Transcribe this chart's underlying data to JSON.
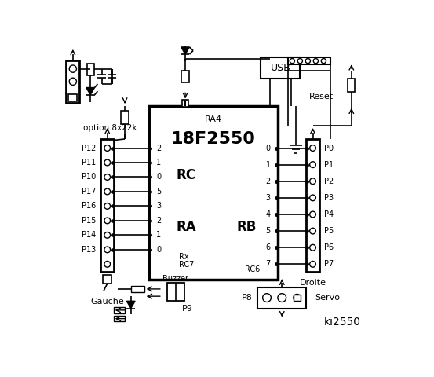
{
  "bg_color": "#ffffff",
  "line_color": "#000000",
  "title": "ki2550",
  "chip_label": "18F2550",
  "rc_label": "RC",
  "ra_label": "RA",
  "rb_label": "RB",
  "ra4_label": "RA4",
  "left_pins": [
    "P12",
    "P11",
    "P10",
    "P17",
    "P16",
    "P15",
    "P14",
    "P13"
  ],
  "right_pins": [
    "P0",
    "P1",
    "P2",
    "P3",
    "P4",
    "P5",
    "P6",
    "P7"
  ],
  "rc_pin_nums": [
    "2",
    "1",
    "0",
    "5",
    "3",
    "2",
    "1",
    "0"
  ],
  "rb_pin_nums": [
    "0",
    "1",
    "2",
    "3",
    "4",
    "5",
    "6",
    "7"
  ],
  "gauche_label": "Gauche",
  "droite_label": "Droite",
  "usb_label": "USB",
  "reset_label": "Reset",
  "servo_label": "Servo",
  "buzzer_label": "Buzzer",
  "p9_label": "P9",
  "p8_label": "P8",
  "option_label": "option 8x22k",
  "rx_label": "Rx",
  "rc7_label": "RC7",
  "rc6_label": "RC6"
}
